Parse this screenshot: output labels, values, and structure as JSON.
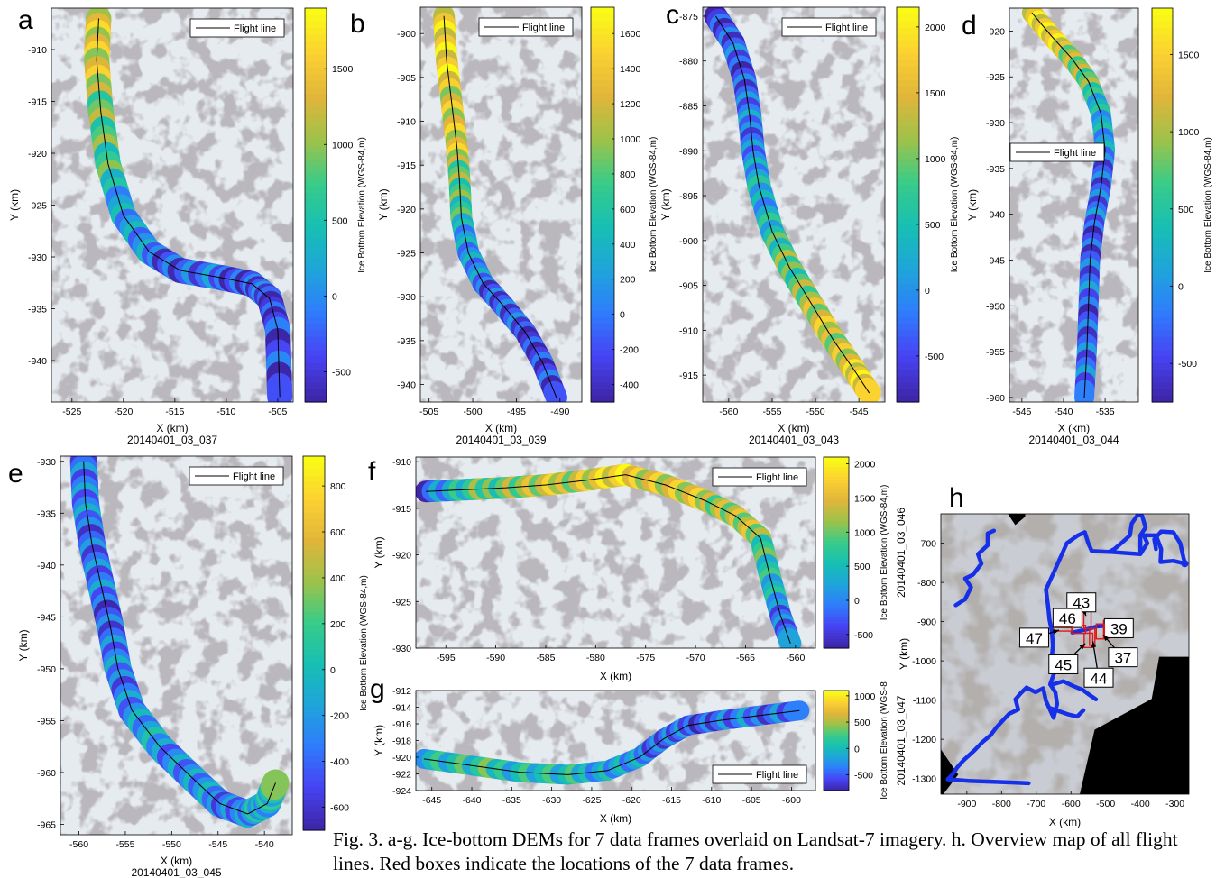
{
  "caption": "Fig. 3. a-g. Ice-bottom DEMs for 7 data frames overlaid on Landsat-7 imagery. h. Overview map of all flight lines. Red boxes indicate the locations of the 7 data frames.",
  "colors": {
    "imagery": "#e6ebf0",
    "rock": "#7d7a82",
    "flight_line": "#000000",
    "overview_track": "#1530e8",
    "overview_box": "#e01818",
    "frame": "#000000"
  },
  "colormap": [
    "#3e26a8",
    "#4743f4",
    "#2f7cfc",
    "#1ea5da",
    "#17bfb3",
    "#38cc8a",
    "#9cc24a",
    "#e0b53a",
    "#fbd032",
    "#f9fb15"
  ],
  "chart_data": [
    {
      "id": "a",
      "type": "heatmap",
      "panel_label": "a",
      "xlabel": "X (km)",
      "ylabel": "Y (km)",
      "frame_label": "20140401_03_037",
      "legend": "Flight line",
      "legend_pos": "top-right",
      "colorbar": {
        "label": "Ice Bottom Elevation (WGS-84,m)",
        "range": [
          -700,
          1900
        ],
        "ticks": [
          -500,
          0,
          500,
          1000,
          1500
        ]
      },
      "xlim": [
        -527,
        -503.5
      ],
      "ylim": [
        -944,
        -906
      ],
      "xticks": [
        -525,
        -520,
        -515,
        -510,
        -505
      ],
      "yticks": [
        -910,
        -915,
        -920,
        -925,
        -930,
        -935,
        -940
      ],
      "flight_line": {
        "x": [
          -522.4,
          -522.6,
          -522.2,
          -521.5,
          -520.0,
          -517.5,
          -514.5,
          -510.5,
          -507.5,
          -505.8,
          -505.0,
          -504.8
        ],
        "y": [
          -907,
          -911,
          -916,
          -921,
          -926,
          -929.5,
          -931.3,
          -932.0,
          -932.6,
          -934,
          -937,
          -943.5
        ]
      },
      "swath_values": [
        1500,
        1250,
        1000,
        600,
        200,
        -100,
        -300,
        -250,
        -350,
        -400,
        -450,
        -550
      ]
    },
    {
      "id": "b",
      "type": "heatmap",
      "panel_label": "b",
      "xlabel": "X (km)",
      "ylabel": "Y (km)",
      "frame_label": "20140401_03_039",
      "legend": "Flight line",
      "legend_pos": "top-right",
      "colorbar": {
        "label": "Ice Bottom Elevation (WGS-84,m)",
        "range": [
          -500,
          1750
        ],
        "ticks": [
          -400,
          -200,
          0,
          200,
          400,
          600,
          800,
          1000,
          1200,
          1400,
          1600
        ]
      },
      "xlim": [
        -506,
        -487.5
      ],
      "ylim": [
        -942,
        -897
      ],
      "xticks": [
        -505,
        -500,
        -495,
        -490
      ],
      "yticks": [
        -900,
        -905,
        -910,
        -915,
        -920,
        -925,
        -930,
        -935,
        -940
      ],
      "flight_line": {
        "x": [
          -503.3,
          -503.0,
          -502.4,
          -501.8,
          -501.5,
          -501.3,
          -500.5,
          -498.8,
          -496.5,
          -494.0,
          -492.0,
          -490.4
        ],
        "y": [
          -898,
          -903,
          -908,
          -913,
          -917,
          -921,
          -925,
          -928.5,
          -931,
          -934,
          -937.5,
          -941.5
        ]
      },
      "swath_values": [
        1500,
        1400,
        1300,
        1200,
        900,
        500,
        200,
        -50,
        -150,
        -250,
        -300,
        -350
      ]
    },
    {
      "id": "c",
      "type": "heatmap",
      "panel_label": "c",
      "xlabel": "X (km)",
      "ylabel": "Y (km)",
      "frame_label": "20140401_03_043",
      "legend": "Flight line",
      "legend_pos": "top-right",
      "colorbar": {
        "label": "Ice Bottom Elevation (WGS-84,m)",
        "range": [
          -850,
          2150
        ],
        "ticks": [
          -500,
          0,
          500,
          1000,
          1500,
          2000
        ]
      },
      "xlim": [
        -563,
        -542
      ],
      "ylim": [
        -918,
        -874
      ],
      "xticks": [
        -560,
        -555,
        -550,
        -545
      ],
      "yticks": [
        -875,
        -880,
        -885,
        -890,
        -895,
        -900,
        -905,
        -910,
        -915
      ],
      "flight_line": {
        "x": [
          -561.5,
          -559.5,
          -558.2,
          -557.6,
          -557.2,
          -556.5,
          -555.0,
          -553.0,
          -550.5,
          -548.0,
          -545.5,
          -543.8
        ],
        "y": [
          -875,
          -878,
          -882,
          -886,
          -890,
          -894,
          -899,
          -903,
          -907,
          -911,
          -914.5,
          -917
        ]
      },
      "swath_values": [
        -500,
        -450,
        -350,
        -250,
        -100,
        150,
        500,
        850,
        1200,
        1400,
        1550,
        1650
      ]
    },
    {
      "id": "d",
      "type": "heatmap",
      "panel_label": "d",
      "xlabel": "X (km)",
      "ylabel": "Y (km)",
      "frame_label": "20140401_03_044",
      "legend": "Flight line",
      "legend_pos": "center-right",
      "colorbar": {
        "label": "Ice Bottom Elevation (WGS-84,m)",
        "range": [
          -750,
          1800
        ],
        "ticks": [
          -500,
          0,
          500,
          1000,
          1500
        ]
      },
      "xlim": [
        -546.5,
        -531
      ],
      "ylim": [
        -960.5,
        -917.5
      ],
      "xticks": [
        -545,
        -540,
        -535
      ],
      "yticks": [
        -920,
        -925,
        -930,
        -935,
        -940,
        -945,
        -950,
        -955,
        -960
      ],
      "flight_line": {
        "x": [
          -543.8,
          -541.5,
          -539.0,
          -537.0,
          -535.5,
          -535.0,
          -535.5,
          -536.3,
          -536.8,
          -537.0,
          -537.2,
          -537.5
        ],
        "y": [
          -918,
          -920.5,
          -923,
          -925.5,
          -929,
          -933,
          -937,
          -941,
          -945,
          -950,
          -955,
          -960
        ]
      },
      "swath_values": [
        1500,
        1400,
        1100,
        700,
        300,
        -100,
        -300,
        -350,
        -350,
        -300,
        -300,
        -350
      ]
    },
    {
      "id": "e",
      "type": "heatmap",
      "panel_label": "e",
      "xlabel": "X (km)",
      "ylabel": "Y (km)",
      "frame_label": "20140401_03_045",
      "legend": "Flight line",
      "legend_pos": "top-right",
      "colorbar": {
        "label": "Ice Bottom Elevation (WGS-84,m)",
        "range": [
          -700,
          930
        ],
        "ticks": [
          -600,
          -400,
          -200,
          0,
          200,
          400,
          600,
          800
        ]
      },
      "xlim": [
        -562,
        -537
      ],
      "ylim": [
        -966,
        -929.5
      ],
      "xticks": [
        -560,
        -555,
        -550,
        -545,
        -540
      ],
      "yticks": [
        -930,
        -935,
        -940,
        -945,
        -950,
        -955,
        -960,
        -965
      ],
      "flight_line": {
        "x": [
          -559.5,
          -559.3,
          -558.6,
          -557.6,
          -556.6,
          -555.8,
          -554.3,
          -551.3,
          -547.8,
          -544.8,
          -541.8,
          -539.7,
          -538.8
        ],
        "y": [
          -930,
          -934,
          -938,
          -942,
          -946,
          -950,
          -954,
          -957.5,
          -960.5,
          -963,
          -964,
          -963,
          -961
        ]
      },
      "swath_values": [
        -300,
        -350,
        -350,
        -400,
        -400,
        -350,
        -250,
        -200,
        -250,
        -300,
        -300,
        -50,
        150
      ]
    },
    {
      "id": "f",
      "type": "heatmap",
      "panel_label": "f",
      "xlabel": "X (km)",
      "ylabel": "Y (km)",
      "frame_label": "20140401_03_046",
      "legend": "Flight line",
      "legend_pos": "top-right",
      "colorbar": {
        "label": "Ice Bottom Elevation (WGS-84,m)",
        "range": [
          -700,
          2100
        ],
        "ticks": [
          -500,
          0,
          500,
          1000,
          1500,
          2000
        ]
      },
      "xlim": [
        -598,
        -558
      ],
      "ylim": [
        -930,
        -909.5
      ],
      "xticks": [
        -595,
        -590,
        -585,
        -580,
        -575,
        -570,
        -565,
        -560
      ],
      "yticks": [
        -910,
        -915,
        -920,
        -925,
        -930
      ],
      "flight_line": {
        "x": [
          -597,
          -593,
          -589,
          -585,
          -581,
          -577,
          -573,
          -569,
          -566,
          -563.5,
          -562.5,
          -561.5,
          -560.5
        ],
        "y": [
          -913.2,
          -913.0,
          -912.8,
          -912.5,
          -912.0,
          -911.4,
          -912.5,
          -914.2,
          -915.8,
          -918.2,
          -922.5,
          -926.5,
          -929.5
        ]
      },
      "swath_values": [
        -200,
        600,
        1100,
        1300,
        1500,
        1700,
        1500,
        1300,
        1300,
        1100,
        500,
        0,
        -200
      ]
    },
    {
      "id": "g",
      "type": "heatmap",
      "panel_label": "g",
      "xlabel": "X (km)",
      "ylabel": "Y (km)",
      "frame_label": "20140401_03_047",
      "legend": "Flight line",
      "legend_pos": "bottom-right",
      "colorbar": {
        "label": "Ice Bottom Elevation (WGS-8",
        "range": [
          -800,
          1100
        ],
        "ticks": [
          -500,
          0,
          500,
          1000
        ]
      },
      "xlim": [
        -647,
        -597
      ],
      "ylim": [
        -924,
        -912
      ],
      "xticks": [
        -645,
        -640,
        -635,
        -630,
        -625,
        -620,
        -615,
        -610,
        -605,
        -600
      ],
      "yticks": [
        -912,
        -914,
        -916,
        -918,
        -920,
        -922,
        -924
      ],
      "flight_line": {
        "x": [
          -646,
          -640,
          -634,
          -628,
          -623,
          -619,
          -616,
          -613,
          -609,
          -604,
          -599
        ],
        "y": [
          -920.2,
          -921.0,
          -921.8,
          -922.1,
          -921.6,
          -920.0,
          -917.8,
          -916.2,
          -915.6,
          -915.0,
          -914.4
        ]
      },
      "swath_values": [
        50,
        100,
        100,
        0,
        -100,
        -300,
        -450,
        -500,
        -450,
        -400,
        -350
      ]
    },
    {
      "id": "h",
      "type": "map",
      "panel_label": "h",
      "xlabel": "X (km)",
      "ylabel": "Y (km)",
      "xlim": [
        -975,
        -260
      ],
      "ylim": [
        -1340,
        -625
      ],
      "xticks": [
        -900,
        -800,
        -700,
        -600,
        -500,
        -400,
        -300
      ],
      "yticks": [
        -700,
        -800,
        -900,
        -1000,
        -1100,
        -1200,
        -1300
      ],
      "track_segments": [
        {
          "x": [
            -932,
            -905,
            -888,
            -905,
            -882,
            -858,
            -868,
            -840,
            -840,
            -822
          ],
          "y": [
            -858,
            -843,
            -812,
            -790,
            -780,
            -752,
            -728,
            -705,
            -675,
            -668
          ]
        },
        {
          "x": [
            -672,
            -638,
            -612,
            -580,
            -560,
            -550,
            -540,
            -490,
            -400,
            -380,
            -390,
            -355,
            -340,
            -342,
            -305,
            -272
          ],
          "y": [
            -818,
            -752,
            -700,
            -680,
            -672,
            -700,
            -720,
            -722,
            -728,
            -700,
            -680,
            -680,
            -715,
            -748,
            -745,
            -752
          ]
        },
        {
          "x": [
            -400,
            -400,
            -385,
            -395,
            -408,
            -425,
            -430,
            -455,
            -475,
            -490
          ],
          "y": [
            -720,
            -680,
            -660,
            -630,
            -628,
            -650,
            -680,
            -700,
            -715,
            -722
          ]
        },
        {
          "x": [
            -355,
            -360,
            -340,
            -305,
            -285,
            -275,
            -270
          ],
          "y": [
            -715,
            -690,
            -670,
            -672,
            -700,
            -740,
            -752
          ]
        },
        {
          "x": [
            -672,
            -666,
            -662,
            -655,
            -652,
            -656,
            -648,
            -660,
            -645,
            -640,
            -650
          ],
          "y": [
            -818,
            -860,
            -895,
            -925,
            -960,
            -998,
            -1030,
            -1060,
            -1080,
            -1110,
            -1145
          ]
        },
        {
          "x": [
            -650,
            -672,
            -680,
            -702,
            -728,
            -744,
            -760,
            -752,
            -778,
            -792,
            -815,
            -832,
            -856,
            -878,
            -910,
            -928,
            -942,
            -955
          ],
          "y": [
            -1145,
            -1102,
            -1070,
            -1080,
            -1068,
            -1082,
            -1098,
            -1124,
            -1135,
            -1148,
            -1170,
            -1190,
            -1208,
            -1228,
            -1254,
            -1272,
            -1290,
            -1302
          ]
        },
        {
          "x": [
            -955,
            -895,
            -835,
            -772,
            -722
          ],
          "y": [
            -1302,
            -1306,
            -1308,
            -1310,
            -1312
          ]
        },
        {
          "x": [
            -652,
            -622,
            -594,
            -566,
            -548,
            -528
          ],
          "y": [
            -1060,
            -1052,
            -1064,
            -1074,
            -1086,
            -1098
          ]
        },
        {
          "x": [
            -662,
            -636,
            -610,
            -582,
            -564
          ],
          "y": [
            -1120,
            -1128,
            -1136,
            -1142,
            -1126
          ]
        },
        {
          "x": [
            -596,
            -556,
            -524,
            -490
          ],
          "y": [
            -928,
            -920,
            -912,
            -910
          ]
        }
      ],
      "boxes": [
        {
          "label": "43",
          "x": [
            -563,
            -542
          ],
          "y": [
            -918,
            -874
          ],
          "anchor": [
            -570,
            -852
          ]
        },
        {
          "label": "39",
          "x": [
            -506,
            -487.5
          ],
          "y": [
            -942,
            -897
          ],
          "anchor": [
            -462,
            -918
          ]
        },
        {
          "label": "46",
          "x": [
            -598,
            -558
          ],
          "y": [
            -930,
            -909.5
          ],
          "anchor": [
            -610,
            -892
          ]
        },
        {
          "label": "47",
          "x": [
            -647,
            -597
          ],
          "y": [
            -924,
            -912
          ],
          "anchor": [
            -706,
            -942
          ]
        },
        {
          "label": "45",
          "x": [
            -562,
            -537
          ],
          "y": [
            -966,
            -929.5
          ],
          "anchor": [
            -622,
            -1010
          ]
        },
        {
          "label": "44",
          "x": [
            -546.5,
            -531
          ],
          "y": [
            -960.5,
            -917.5
          ],
          "anchor": [
            -520,
            -1044
          ]
        },
        {
          "label": "37",
          "x": [
            -527,
            -503.5
          ],
          "y": [
            -944,
            -906
          ],
          "anchor": [
            -450,
            -992
          ]
        }
      ]
    }
  ]
}
